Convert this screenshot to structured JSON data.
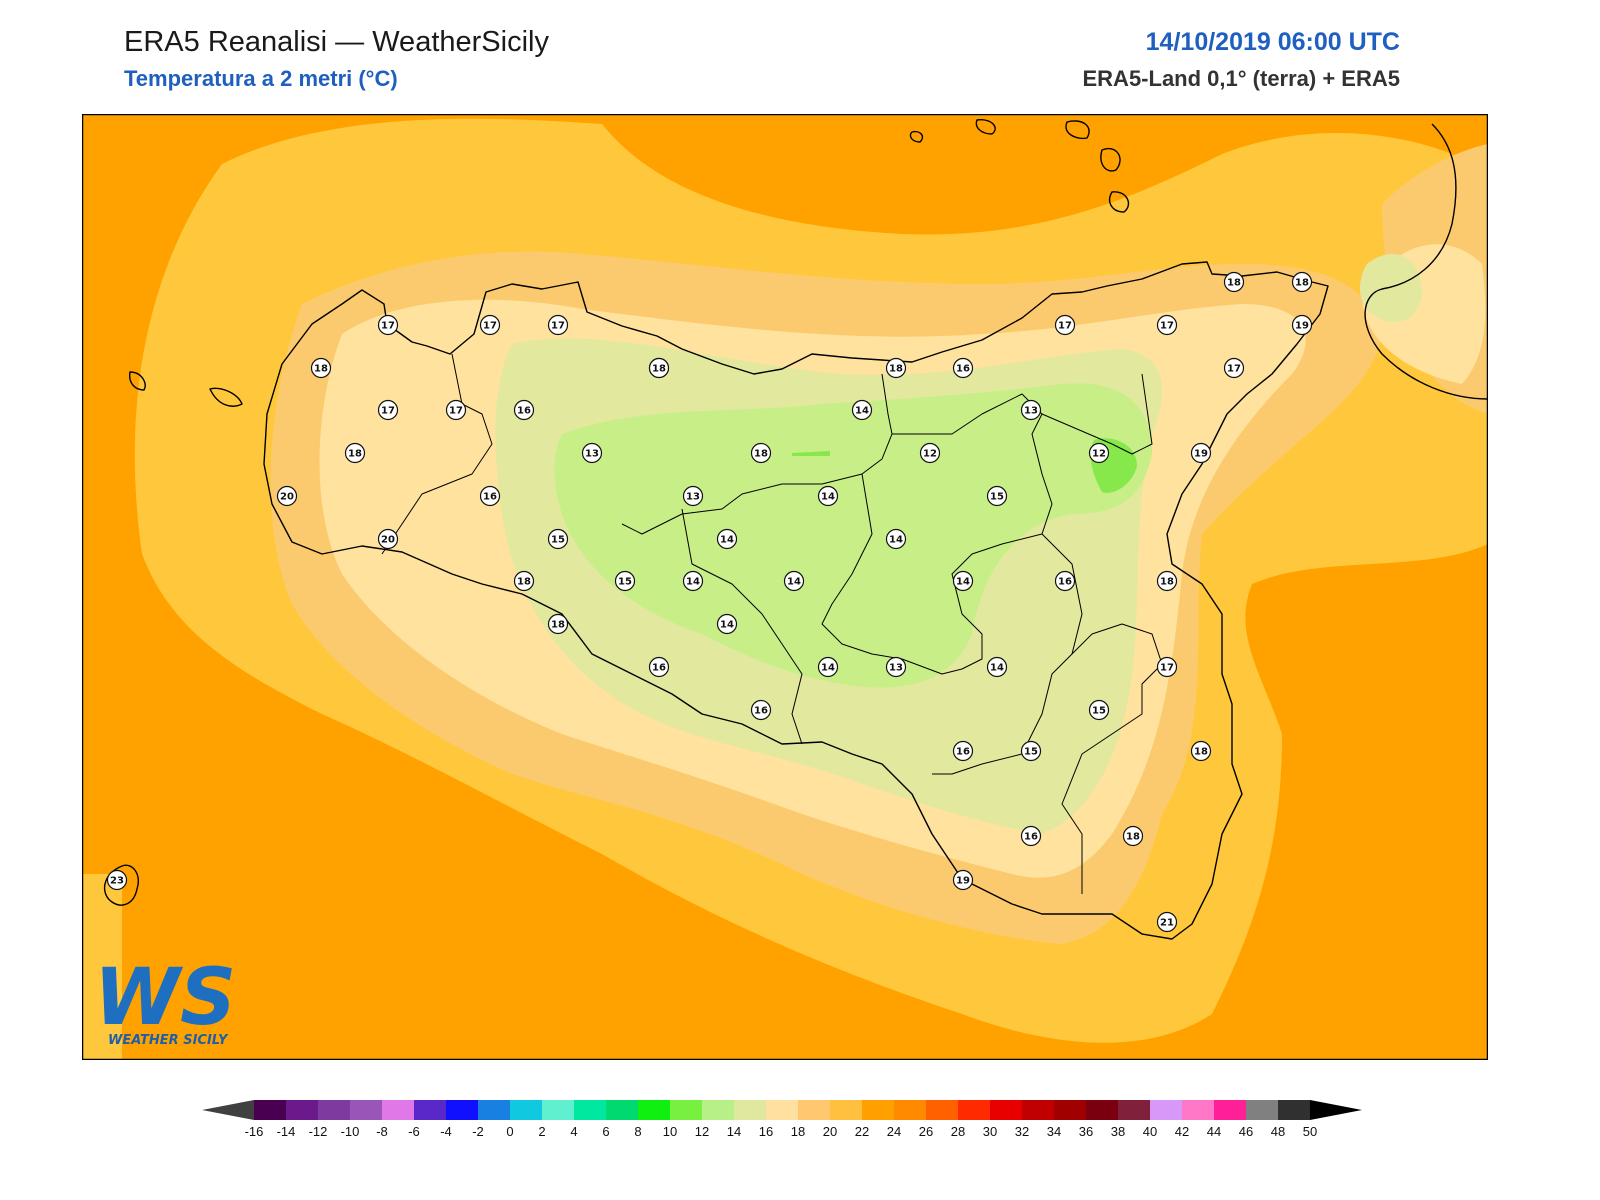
{
  "header": {
    "title": "ERA5 Reanalisi — WeatherSicily",
    "subtitle": "Temperatura a 2 metri (°C)",
    "datetime": "14/10/2019 06:00 UTC",
    "source": "ERA5-Land 0,1° (terra) + ERA5"
  },
  "logo": {
    "text": "WS",
    "caption": "WEATHER SICILY"
  },
  "colors": {
    "c24": "#ffa200",
    "c22": "#ffc83c",
    "c20": "#fcca6e",
    "c18": "#ffe29e",
    "c16": "#e2e89e",
    "c14": "#c8ee88",
    "c12": "#86e84a",
    "station_bg": "#ffffff"
  },
  "stations": [
    {
      "v": "17"
    },
    {
      "v": "17"
    },
    {
      "v": "17"
    },
    {
      "v": "18"
    },
    {
      "v": "17"
    },
    {
      "v": "17"
    },
    {
      "v": "16"
    },
    {
      "v": "18"
    },
    {
      "v": "20"
    },
    {
      "v": "20"
    },
    {
      "v": "16"
    },
    {
      "v": "13"
    },
    {
      "v": "18"
    },
    {
      "v": "13"
    },
    {
      "v": "18"
    },
    {
      "v": "14"
    },
    {
      "v": "13"
    },
    {
      "v": "14"
    },
    {
      "v": "15"
    },
    {
      "v": "14"
    },
    {
      "v": "15"
    },
    {
      "v": "14"
    },
    {
      "v": "14"
    },
    {
      "v": "18"
    },
    {
      "v": "18"
    },
    {
      "v": "14"
    },
    {
      "v": "16"
    },
    {
      "v": "16"
    },
    {
      "v": "14"
    },
    {
      "v": "13"
    },
    {
      "v": "14"
    },
    {
      "v": "18"
    },
    {
      "v": "16"
    },
    {
      "v": "12"
    },
    {
      "v": "15"
    },
    {
      "v": "14"
    },
    {
      "v": "16"
    },
    {
      "v": "13"
    },
    {
      "v": "14"
    },
    {
      "v": "16"
    },
    {
      "v": "15"
    },
    {
      "v": "17"
    },
    {
      "v": "17"
    },
    {
      "v": "18"
    },
    {
      "v": "18"
    },
    {
      "v": "19"
    },
    {
      "v": "17"
    },
    {
      "v": "12"
    },
    {
      "v": "19"
    },
    {
      "v": "18"
    },
    {
      "v": "17"
    },
    {
      "v": "15"
    },
    {
      "v": "18"
    },
    {
      "v": "16"
    },
    {
      "v": "18"
    },
    {
      "v": "19"
    },
    {
      "v": "21"
    },
    {
      "v": "23"
    }
  ],
  "colorbar": {
    "labels": [
      "-16",
      "-14",
      "-12",
      "-10",
      "-8",
      "-6",
      "-4",
      "-2",
      "0",
      "2",
      "4",
      "6",
      "8",
      "10",
      "12",
      "14",
      "16",
      "18",
      "20",
      "22",
      "24",
      "26",
      "28",
      "30",
      "32",
      "34",
      "36",
      "38",
      "40",
      "42",
      "44",
      "46",
      "48",
      "50"
    ],
    "colors": [
      "#4a0050",
      "#6a1a8a",
      "#7f3aa0",
      "#9a55b8",
      "#e078e8",
      "#5a28c8",
      "#1010ff",
      "#1880e0",
      "#10c8e0",
      "#60f0d0",
      "#00e8a0",
      "#00d870",
      "#10f010",
      "#78f040",
      "#b8f088",
      "#e0e8a0",
      "#ffe0a0",
      "#ffc870",
      "#ffc040",
      "#ffa000",
      "#ff8a00",
      "#ff6000",
      "#ff2a00",
      "#e80000",
      "#c00000",
      "#a00000",
      "#7a0010",
      "#80203a",
      "#d898f8",
      "#ff78c8",
      "#ff2098",
      "#808080",
      "#303030"
    ],
    "under_color": "#404040",
    "over_color": "#000000"
  }
}
